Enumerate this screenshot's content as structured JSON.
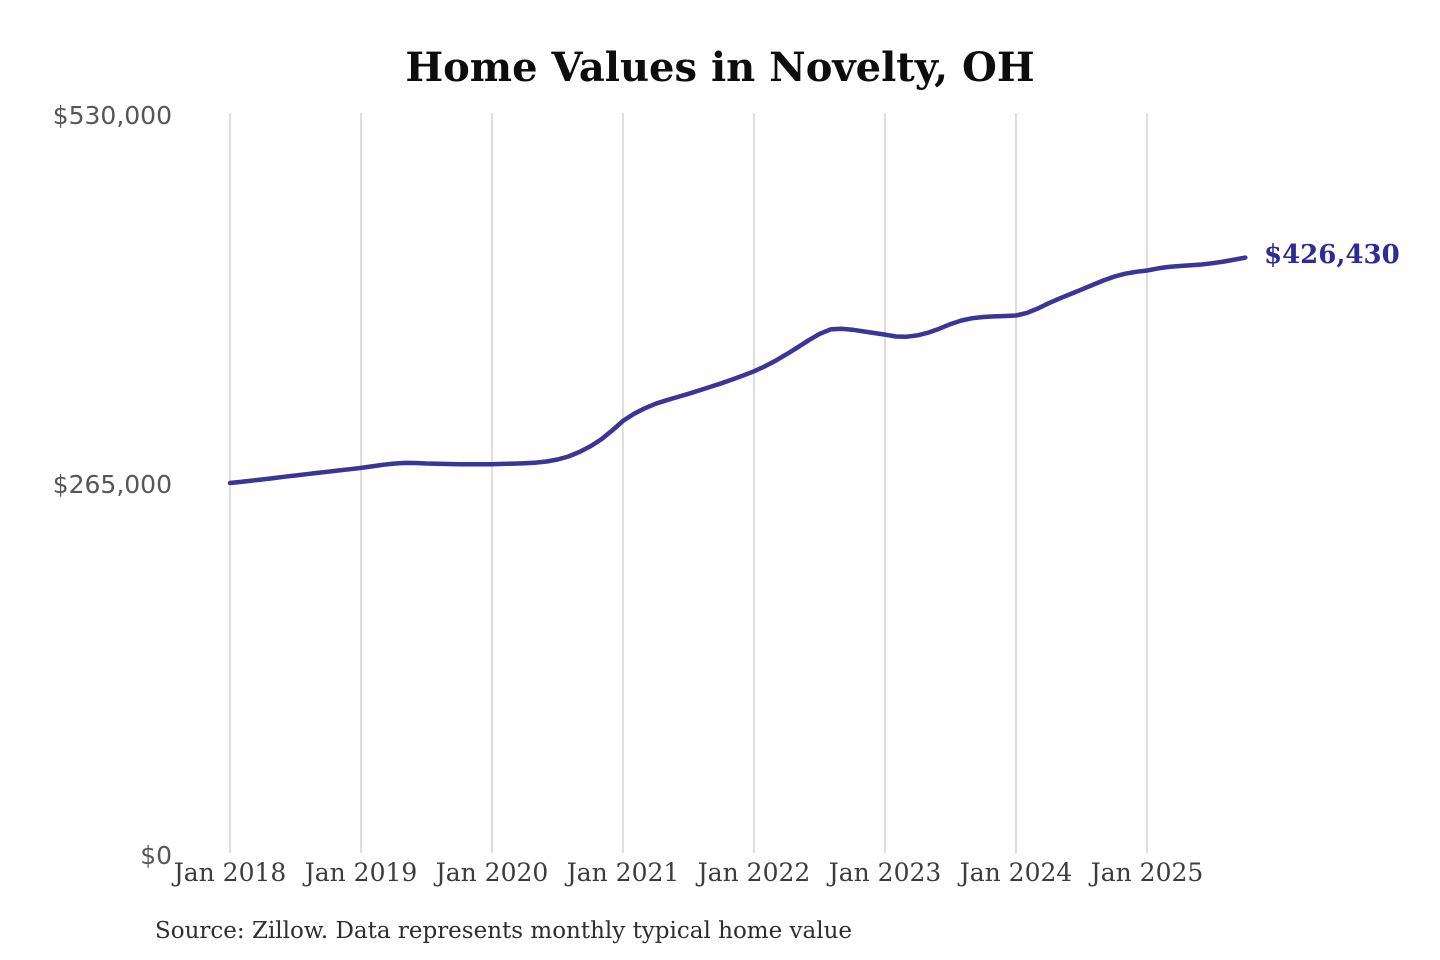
{
  "title": "Home Values in Novelty, OH",
  "source_note": "Source: Zillow. Data represents monthly typical home value",
  "colors": {
    "line": "#3a3597",
    "end_label": "#2f2b96",
    "gridline": "#cbcbcb",
    "title": "#0d0d0d",
    "x_label": "#3c3c3c",
    "y_label": "#565656",
    "background": "#ffffff"
  },
  "chart_data": {
    "type": "line",
    "title": "Home Values in Novelty, OH",
    "series_name": "Monthly typical home value",
    "unit": "USD",
    "frequency": "monthly",
    "x_first_month": "Jan 2018",
    "x_last_month": "Oct 2025",
    "x_tick_labels": [
      "Jan 2018",
      "Jan 2019",
      "Jan 2020",
      "Jan 2021",
      "Jan 2022",
      "Jan 2023",
      "Jan 2024",
      "Jan 2025"
    ],
    "y_tick_labels": [
      "$0",
      "$265,000",
      "$530,000"
    ],
    "ylim": [
      0,
      530000
    ],
    "grid": "vertical-only",
    "legend": "none",
    "final_value": 426430,
    "final_value_label": "$426,430",
    "values": [
      265000,
      265800,
      266700,
      267600,
      268500,
      269500,
      270400,
      271300,
      272200,
      273100,
      274000,
      274900,
      275800,
      276900,
      278000,
      278900,
      279400,
      279300,
      279000,
      278800,
      278600,
      278500,
      278400,
      278400,
      278500,
      278700,
      278900,
      279200,
      279600,
      280400,
      281800,
      284000,
      287200,
      291200,
      296200,
      302600,
      309500,
      314500,
      318500,
      321800,
      324300,
      326600,
      328900,
      331300,
      333800,
      336400,
      339100,
      342000,
      345000,
      348600,
      352700,
      357300,
      362200,
      367200,
      371800,
      375000,
      375500,
      374800,
      373600,
      372400,
      371300,
      369900,
      369800,
      370800,
      372800,
      375600,
      378800,
      381400,
      383000,
      383900,
      384300,
      384600,
      385000,
      386800,
      390000,
      393800,
      397200,
      400400,
      403500,
      406800,
      410000,
      412800,
      414900,
      416300,
      417200,
      418700,
      419800,
      420400,
      420900,
      421500,
      422400,
      423600,
      425000,
      426430
    ]
  }
}
